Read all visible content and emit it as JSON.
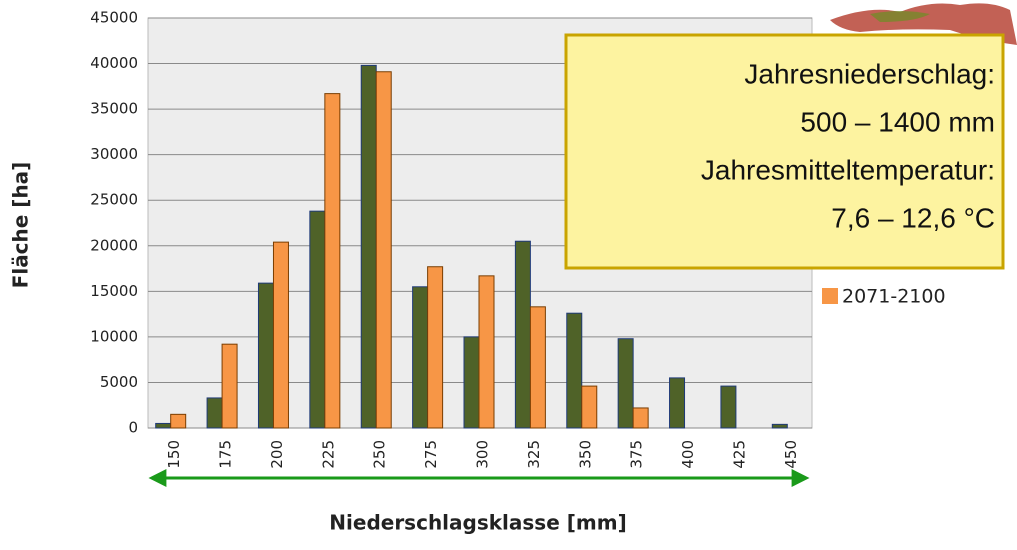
{
  "chart_data": {
    "type": "bar",
    "categories": [
      "150",
      "175",
      "200",
      "225",
      "250",
      "275",
      "300",
      "325",
      "350",
      "375",
      "400",
      "425",
      "450"
    ],
    "series": [
      {
        "color": "#4f6228",
        "values": [
          500,
          3300,
          15900,
          23800,
          39800,
          15500,
          10000,
          20500,
          12600,
          9800,
          5500,
          4600,
          400
        ]
      },
      {
        "name": "2071-2100",
        "color": "#f79646",
        "values": [
          1500,
          9200,
          20400,
          36700,
          39100,
          17700,
          16700,
          13300,
          4600,
          2200,
          0,
          0,
          0
        ]
      }
    ],
    "ylim": [
      0,
      45000
    ],
    "yticks": [
      0,
      5000,
      10000,
      15000,
      20000,
      25000,
      30000,
      35000,
      40000,
      45000
    ],
    "grid": true,
    "xlabel": "Niederschlagsklasse [mm]",
    "ylabel": "Fläche [ha]",
    "annotation": [
      "Jahresniederschlag:",
      "500 – 1400 mm",
      "Jahresmitteltemperatur:",
      "7,6 – 12,6 °C"
    ]
  }
}
